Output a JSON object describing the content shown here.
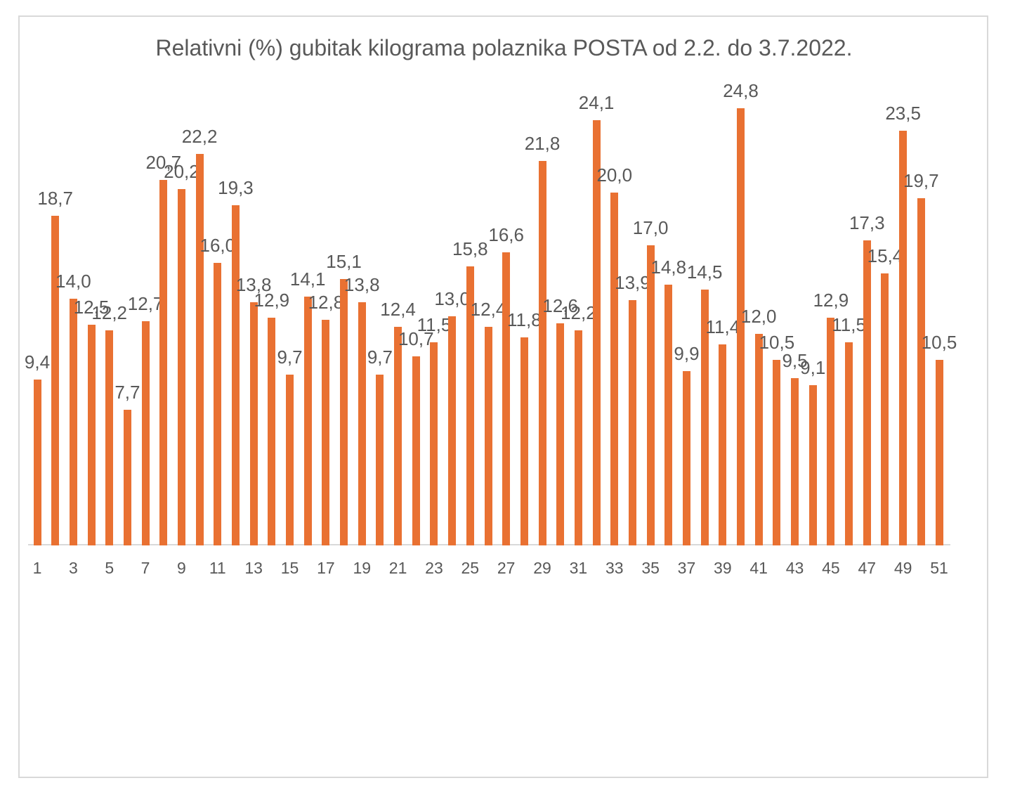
{
  "title": "Relativni (%) gubitak kilograma polaznika POSTA od 2.2. do 3.7.2022.",
  "chart_data": {
    "type": "bar",
    "title": "Relativni (%) gubitak kilograma polaznika POSTA od 2.2. do 3.7.2022.",
    "x": [
      1,
      2,
      3,
      4,
      5,
      6,
      7,
      8,
      9,
      10,
      11,
      12,
      13,
      14,
      15,
      16,
      17,
      18,
      19,
      20,
      21,
      22,
      23,
      24,
      25,
      26,
      27,
      28,
      29,
      30,
      31,
      32,
      33,
      34,
      35,
      36,
      37,
      38,
      39,
      40,
      41,
      42,
      43,
      44,
      45,
      46,
      47,
      48,
      49,
      50,
      51
    ],
    "values": [
      9.4,
      18.7,
      14.0,
      12.5,
      12.2,
      7.7,
      12.7,
      20.7,
      20.2,
      22.2,
      16.0,
      19.3,
      13.8,
      12.9,
      9.7,
      14.1,
      12.8,
      15.1,
      13.8,
      9.7,
      12.4,
      10.7,
      11.5,
      13.0,
      15.8,
      12.4,
      16.6,
      11.8,
      21.8,
      12.6,
      12.2,
      24.1,
      20.0,
      13.9,
      17.0,
      14.8,
      9.9,
      14.5,
      11.4,
      24.8,
      12.0,
      10.5,
      9.5,
      9.1,
      12.9,
      11.5,
      17.3,
      15.4,
      23.5,
      19.7,
      10.5
    ],
    "value_labels": [
      "9,4",
      "18,7",
      "14,0",
      "12,5",
      "12,2",
      "7,7",
      "12,7",
      "20,7",
      "20,2",
      "22,2",
      "16,0",
      "19,3",
      "13,8",
      "12,9",
      "9,7",
      "14,1",
      "12,8",
      "15,1",
      "13,8",
      "9,7",
      "12,4",
      "10,7",
      "11,5",
      "13,0",
      "15,8",
      "12,4",
      "16,6",
      "11,8",
      "21,8",
      "12,6",
      "12,2",
      "24,1",
      "20,0",
      "13,9",
      "17,0",
      "14,8",
      "9,9",
      "14,5",
      "11,4",
      "24,8",
      "12,0",
      "10,5",
      "9,5",
      "9,1",
      "12,9",
      "11,5",
      "17,3",
      "15,4",
      "23,5",
      "19,7",
      "10,5"
    ],
    "x_tick_labels": [
      "1",
      "3",
      "5",
      "7",
      "9",
      "11",
      "13",
      "15",
      "17",
      "19",
      "21",
      "23",
      "25",
      "27",
      "29",
      "31",
      "33",
      "35",
      "37",
      "39",
      "41",
      "43",
      "45",
      "47",
      "49",
      "51"
    ],
    "xlabel": "",
    "ylabel": "",
    "ylim": [
      0,
      25
    ],
    "grid": false,
    "legend": false,
    "bar_color": "#E97132",
    "text_color": "#595959",
    "axis_line_color": "#D9D9D9",
    "border_color": "#D9D9D9"
  }
}
